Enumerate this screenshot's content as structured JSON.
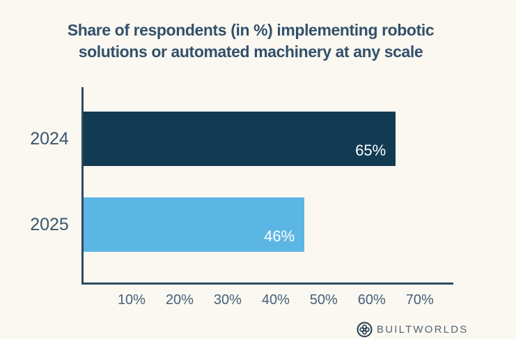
{
  "title": {
    "line1": "Share of respondents (in %) implementing robotic",
    "line2": "solutions or automated machinery at any scale"
  },
  "chart_data": {
    "type": "bar",
    "orientation": "horizontal",
    "title": "Share of respondents (in %) implementing robotic solutions or automated machinery at any scale",
    "categories": [
      "2024",
      "2025"
    ],
    "values": [
      65,
      46
    ],
    "value_labels": [
      "65%",
      "46%"
    ],
    "bar_colors": [
      "#123a52",
      "#5cb6e3"
    ],
    "xlabel": "",
    "ylabel": "",
    "xlim": [
      0,
      77
    ],
    "x_ticks": [
      {
        "value": 10,
        "label": "10%"
      },
      {
        "value": 20,
        "label": "20%"
      },
      {
        "value": 30,
        "label": "30%"
      },
      {
        "value": 40,
        "label": "40%"
      },
      {
        "value": 50,
        "label": "50%"
      },
      {
        "value": 60,
        "label": "60%"
      },
      {
        "value": 70,
        "label": "70%"
      }
    ],
    "grid": false,
    "legend": false,
    "value_label_color": "#ffffff"
  },
  "footer": {
    "brand": "BUILTWORLDS",
    "logo_icon": "builtworlds-clover-icon"
  },
  "colors": {
    "background": "#faf8f1",
    "title": "#33506b",
    "axis": "#2e4a61",
    "category_label": "#3b566f",
    "tick_label": "#46607a",
    "bar_2024": "#123a52",
    "bar_2025": "#5cb6e3",
    "logo": "#233c52",
    "brand_text": "#56646f"
  }
}
